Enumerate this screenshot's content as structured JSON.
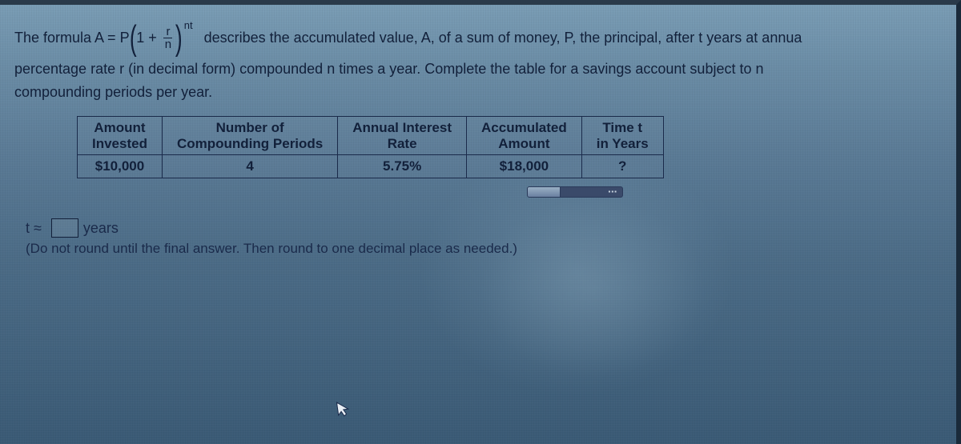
{
  "problem": {
    "formula_prefix": "The formula A = P",
    "frac_num": "r",
    "frac_den": "n",
    "exponent": "nt",
    "after_formula": "describes the accumulated value, A, of a sum of money, P, the principal, after t years at annua",
    "line2": "percentage rate r (in decimal form) compounded n times a year. Complete the table for a savings account subject to n",
    "line3": "compounding periods per year."
  },
  "table": {
    "headers": {
      "c1a": "Amount",
      "c1b": "Invested",
      "c2a": "Number of",
      "c2b": "Compounding Periods",
      "c3a": "Annual Interest",
      "c3b": "Rate",
      "c4a": "Accumulated",
      "c4b": "Amount",
      "c5a": "Time t",
      "c5b": "in Years"
    },
    "row": {
      "invested": "$10,000",
      "periods": "4",
      "rate": "5.75%",
      "accumulated": "$18,000",
      "time": "?"
    },
    "border_color": "#1a2a4a",
    "text_color": "#12203a"
  },
  "progress": {
    "percent": 35
  },
  "answer": {
    "prefix": "t ≈",
    "suffix": "years",
    "hint": "(Do not round until the final answer. Then round to one decimal place as needed.)"
  },
  "cursor_glyph": "↖",
  "colors": {
    "text": "#12203a",
    "bg_top": "#7a9db5",
    "bg_bottom": "#3a5a75"
  }
}
